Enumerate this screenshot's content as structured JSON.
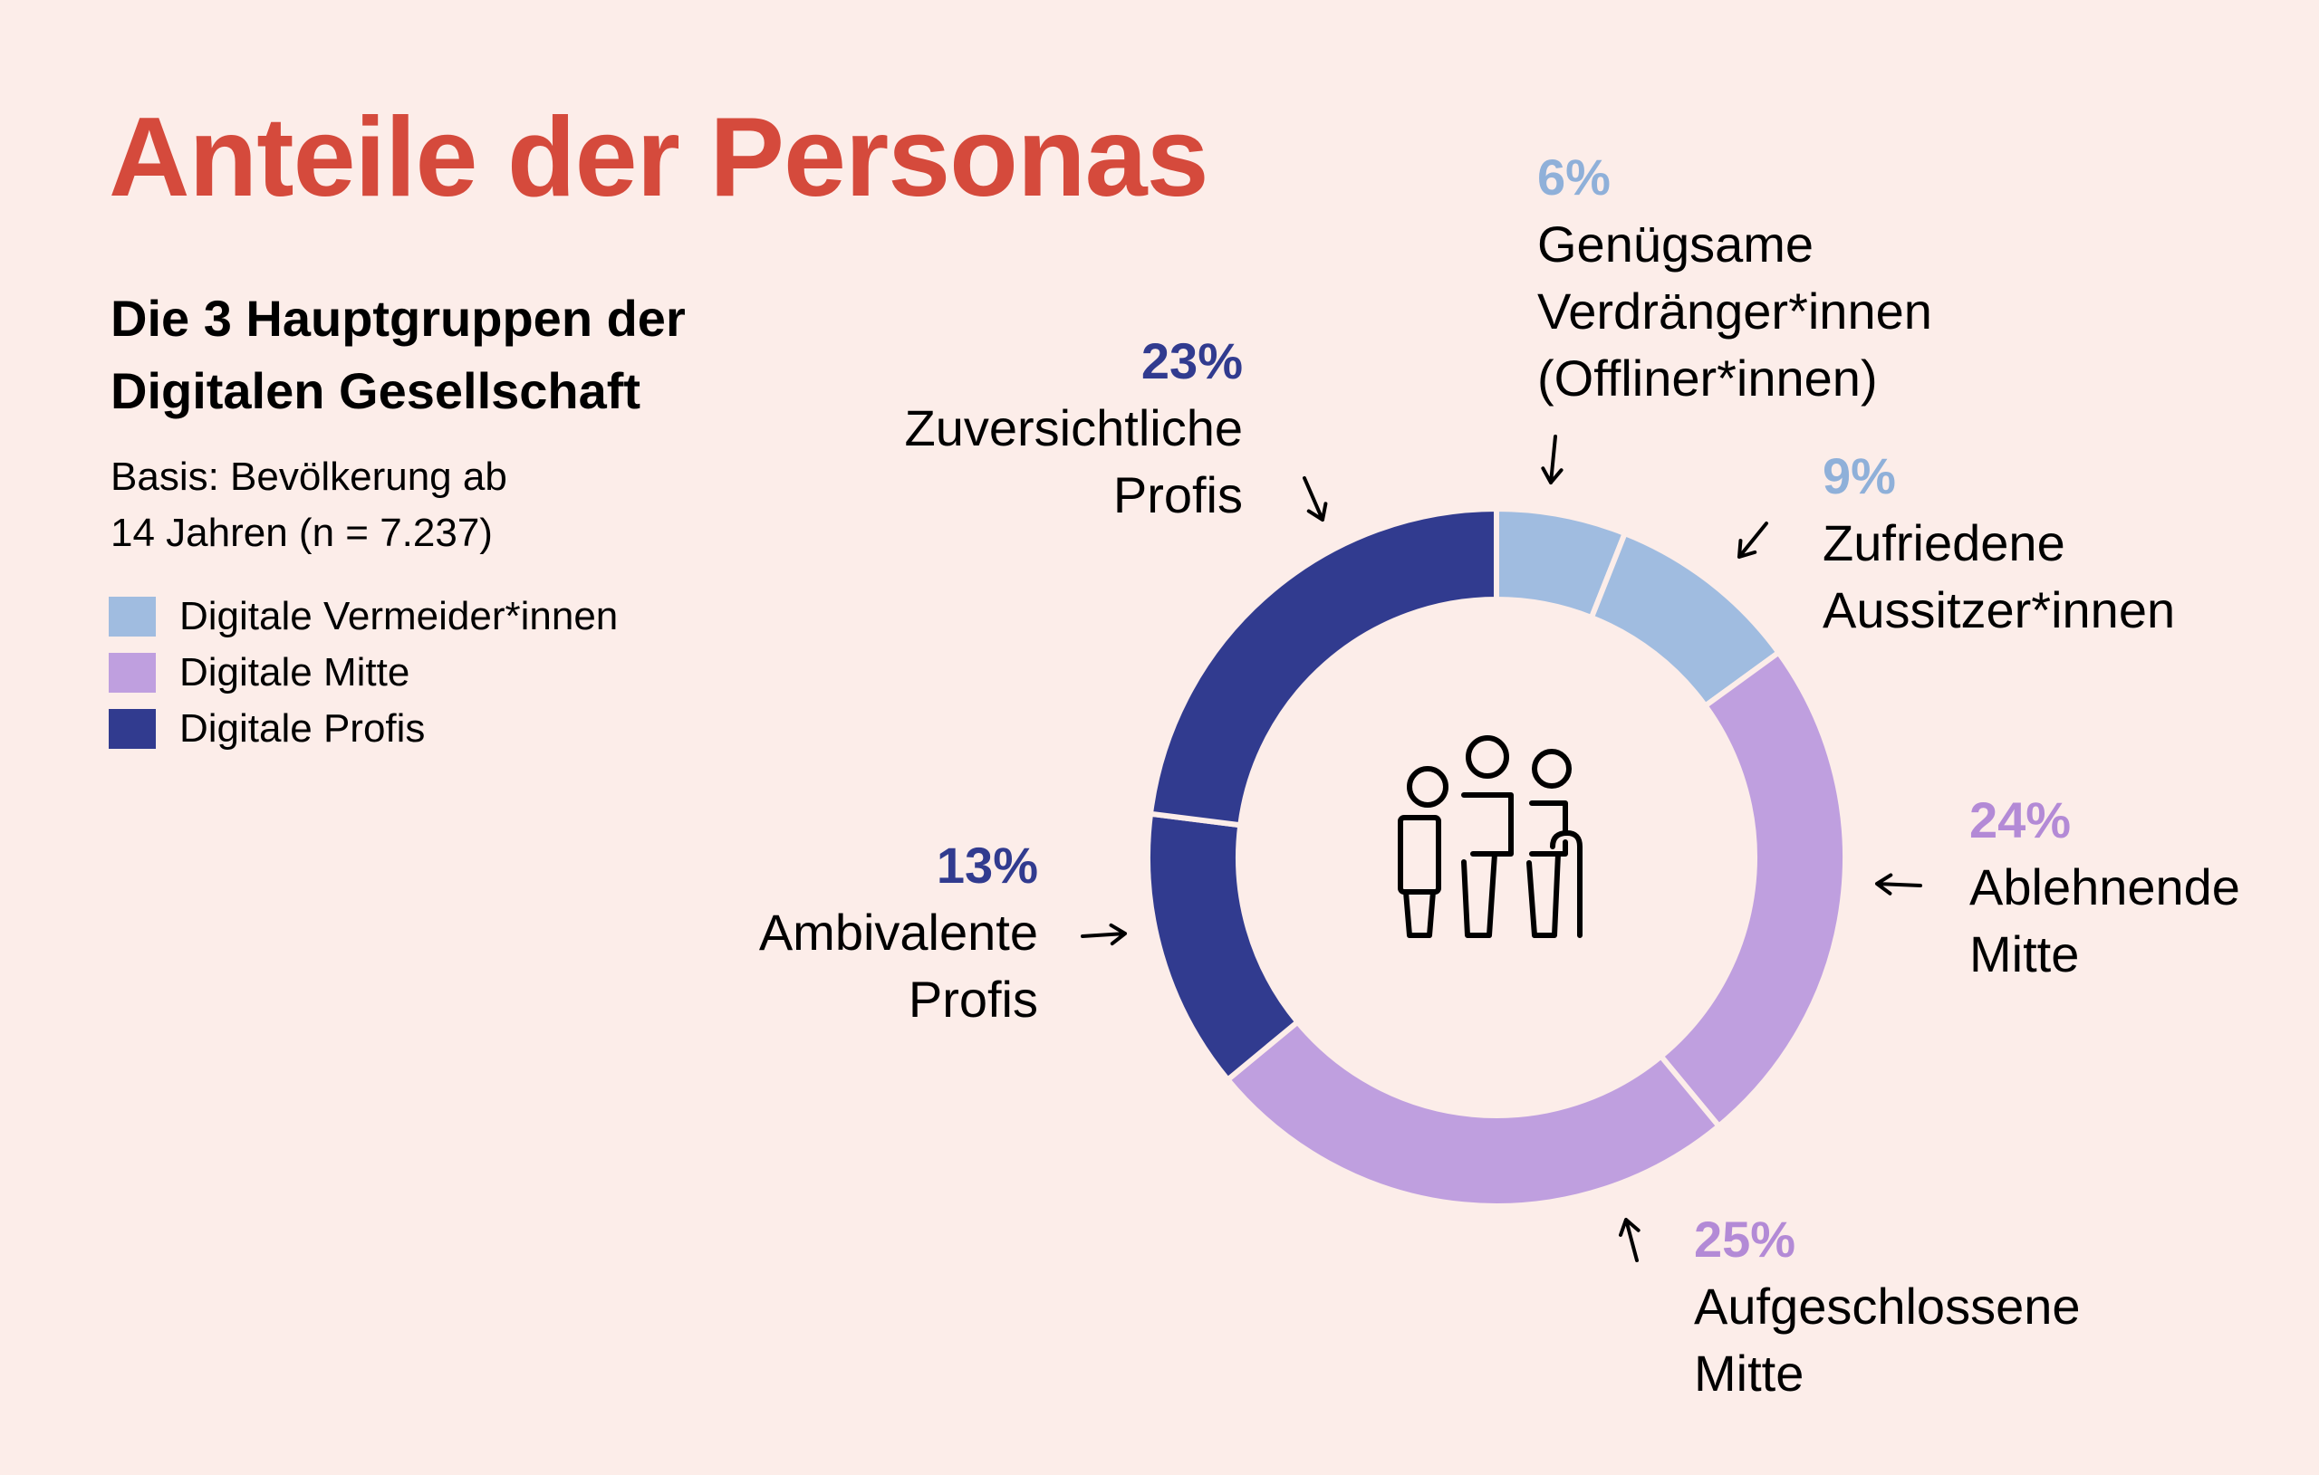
{
  "title": "Anteile der Personas",
  "subtitle": [
    "Die 3 Hauptgruppen der",
    "Digitalen Gesellschaft"
  ],
  "basis": [
    "Basis: Bevölkerung ab",
    "14 Jahren (n = 7.237)"
  ],
  "colors": {
    "background": "#fcede9",
    "title": "#d54a3c",
    "vermeider": "#a0bce0",
    "vermeider_text": "#8fb0d9",
    "mitte": "#bf9fdf",
    "mitte_text": "#b38ad6",
    "profis": "#313b8f",
    "separator": "#fcede9"
  },
  "legend": [
    {
      "label": "Digitale Vermeider*innen",
      "group": "vermeider"
    },
    {
      "label": "Digitale Mitte",
      "group": "mitte"
    },
    {
      "label": "Digitale Profis",
      "group": "profis"
    }
  ],
  "chart_data": {
    "type": "pie",
    "variant": "donut",
    "title": "Anteile der Personas",
    "center_icon": "family-people-icon",
    "start": "top",
    "direction": "clockwise",
    "slices": [
      {
        "name": "Genügsame Verdränger*innen (Offliner*innen)",
        "lines": [
          "Genügsame",
          "Verdränger*innen",
          "(Offliner*innen)"
        ],
        "value": 6,
        "label": "6%",
        "group": "vermeider",
        "arrow": "down"
      },
      {
        "name": "Zufriedene Aussitzer*innen",
        "lines": [
          "Zufriedene",
          "Aussitzer*innen"
        ],
        "value": 9,
        "label": "9%",
        "group": "vermeider",
        "arrow": "down-left"
      },
      {
        "name": "Ablehnende Mitte",
        "lines": [
          "Ablehnende",
          "Mitte"
        ],
        "value": 24,
        "label": "24%",
        "group": "mitte",
        "arrow": "left"
      },
      {
        "name": "Aufgeschlossene Mitte",
        "lines": [
          "Aufgeschlossene",
          "Mitte"
        ],
        "value": 25,
        "label": "25%",
        "group": "mitte",
        "arrow": "up"
      },
      {
        "name": "Ambivalente Profis",
        "lines": [
          "Ambivalente",
          "Profis"
        ],
        "value": 13,
        "label": "13%",
        "group": "profis",
        "arrow": "right"
      },
      {
        "name": "Zuversichtliche Profis",
        "lines": [
          "Zuversichtliche",
          "Profis"
        ],
        "value": 23,
        "label": "23%",
        "group": "profis",
        "arrow": "down-right"
      }
    ]
  }
}
